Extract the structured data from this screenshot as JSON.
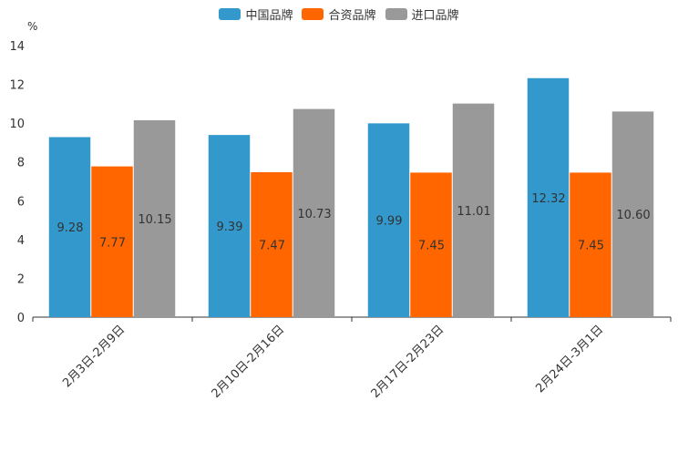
{
  "chart_data": {
    "type": "bar",
    "unit_label": "%",
    "categories": [
      "2月3日-2月9日",
      "2月10日-2月16日",
      "2月17日-2月23日",
      "2月24日-3月1日"
    ],
    "series": [
      {
        "name": "中国品牌",
        "color": "#3399CC",
        "values": [
          9.28,
          9.39,
          9.99,
          12.32
        ]
      },
      {
        "name": "合资品牌",
        "color": "#FF6600",
        "values": [
          7.77,
          7.47,
          7.45,
          7.45
        ]
      },
      {
        "name": "进口品牌",
        "color": "#999999",
        "values": [
          10.15,
          10.73,
          11.01,
          10.6
        ]
      }
    ],
    "y_ticks": [
      0,
      2,
      4,
      6,
      8,
      10,
      12,
      14
    ],
    "ylim": [
      0,
      14
    ],
    "legend_position": "top-center",
    "grid": false
  }
}
